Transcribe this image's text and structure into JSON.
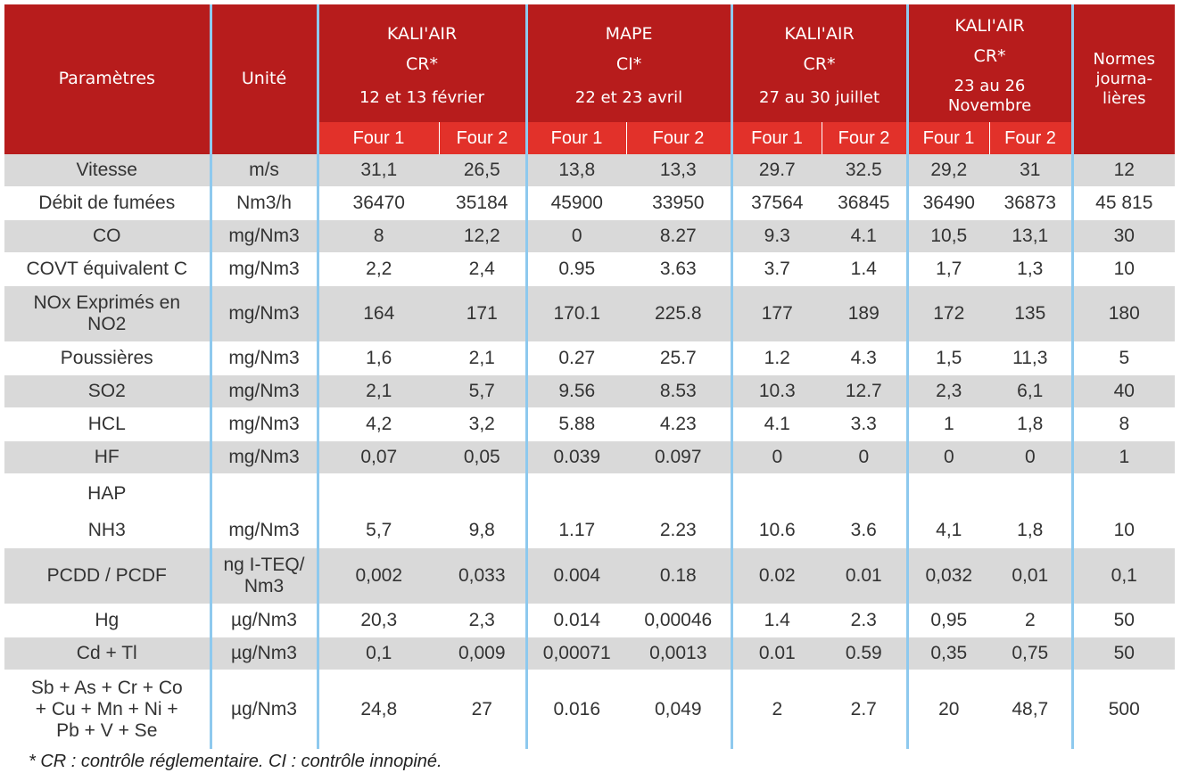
{
  "header": {
    "param": "Paramètres",
    "unit": "Unité",
    "norm": [
      "Normes",
      "journa-",
      "lières"
    ],
    "campaigns": [
      {
        "org": "KALI'AIR",
        "type": "CR*",
        "date": [
          "12 et 13 février"
        ]
      },
      {
        "org": "MAPE",
        "type": "CI*",
        "date": [
          "22 et 23 avril"
        ]
      },
      {
        "org": "KALI'AIR",
        "type": "CR*",
        "date": [
          "27 au 30 juillet"
        ]
      },
      {
        "org": "KALI'AIR",
        "type": "CR*",
        "date": [
          "23 au 26",
          "Novembre"
        ]
      }
    ],
    "four1": "Four 1",
    "four2": "Four 2"
  },
  "rows": [
    {
      "param": "Vitesse",
      "unit": "m/s",
      "values": [
        "31,1",
        "26,5",
        "13,8",
        "13,3",
        "29.7",
        "32.5",
        "29,2",
        "31"
      ],
      "norm": "12"
    },
    {
      "param": "Débit de fumées",
      "unit": "Nm3/h",
      "values": [
        "36470",
        "35184",
        "45900",
        "33950",
        "37564",
        "36845",
        "36490",
        "36873"
      ],
      "norm": "45 815"
    },
    {
      "param": "CO",
      "unit": "mg/Nm3",
      "values": [
        "8",
        "12,2",
        "0",
        "8.27",
        "9.3",
        "4.1",
        "10,5",
        "13,1"
      ],
      "norm": "30"
    },
    {
      "param": "COVT équivalent C",
      "unit": "mg/Nm3",
      "values": [
        "2,2",
        "2,4",
        "0.95",
        "3.63",
        "3.7",
        "1.4",
        "1,7",
        "1,3"
      ],
      "norm": "10"
    },
    {
      "param": [
        "NOx Exprimés en",
        "NO2"
      ],
      "unit": "mg/Nm3",
      "values": [
        "164",
        "171",
        "170.1",
        "225.8",
        "177",
        "189",
        "172",
        "135"
      ],
      "norm": "180"
    },
    {
      "param": "Poussières",
      "unit": "mg/Nm3",
      "values": [
        "1,6",
        "2,1",
        "0.27",
        "25.7",
        "1.2",
        "4.3",
        "1,5",
        "11,3"
      ],
      "norm": "5"
    },
    {
      "param": "SO2",
      "unit": "mg/Nm3",
      "values": [
        "2,1",
        "5,7",
        "9.56",
        "8.53",
        "10.3",
        "12.7",
        "2,3",
        "6,1"
      ],
      "norm": "40"
    },
    {
      "param": "HCL",
      "unit": "mg/Nm3",
      "values": [
        "4,2",
        "3,2",
        "5.88",
        "4.23",
        "4.1",
        "3.3",
        "1",
        "1,8"
      ],
      "norm": "8"
    },
    {
      "param": "HF",
      "unit": "mg/Nm3",
      "values": [
        "0,07",
        "0,05",
        "0.039",
        "0.097",
        "0",
        "0",
        "0",
        "0"
      ],
      "norm": "1"
    },
    {
      "param": "HAP",
      "unit": "",
      "values": [
        "",
        "",
        "",
        "",
        "",
        "",
        "",
        ""
      ],
      "norm": ""
    },
    {
      "param": "NH3",
      "unit": "mg/Nm3",
      "values": [
        "5,7",
        "9,8",
        "1.17",
        "2.23",
        "10.6",
        "3.6",
        "4,1",
        "1,8"
      ],
      "norm": "10"
    },
    {
      "param": "PCDD / PCDF",
      "unit": [
        "ng I-TEQ/",
        "Nm3"
      ],
      "values": [
        "0,002",
        "0,033",
        "0.004",
        "0.18",
        "0.02",
        "0.01",
        "0,032",
        "0,01"
      ],
      "norm": "0,1"
    },
    {
      "param": "Hg",
      "unit": "µg/Nm3",
      "values": [
        "20,3",
        "2,3",
        "0.014",
        "0,00046",
        "1.4",
        "2.3",
        "0,95",
        "2"
      ],
      "norm": "50"
    },
    {
      "param": "Cd + Tl",
      "unit": "µg/Nm3",
      "values": [
        "0,1",
        "0,009",
        "0,00071",
        "0,0013",
        "0.01",
        "0.59",
        "0,35",
        "0,75"
      ],
      "norm": "50"
    },
    {
      "param": [
        "Sb + As + Cr + Co",
        "+ Cu + Mn + Ni +",
        "Pb + V + Se"
      ],
      "unit": "µg/Nm3",
      "values": [
        "24,8",
        "27",
        "0.016",
        "0,049",
        "2",
        "2.7",
        "20",
        "48,7"
      ],
      "norm": "500"
    }
  ],
  "footnote": "* CR : contrôle réglementaire. CI : contrôle innopiné.",
  "colors": {
    "header": "#b71c1c",
    "subheader": "#e2312a",
    "row_gray": "#d9d9d9",
    "separator": "#8ec9ee"
  }
}
